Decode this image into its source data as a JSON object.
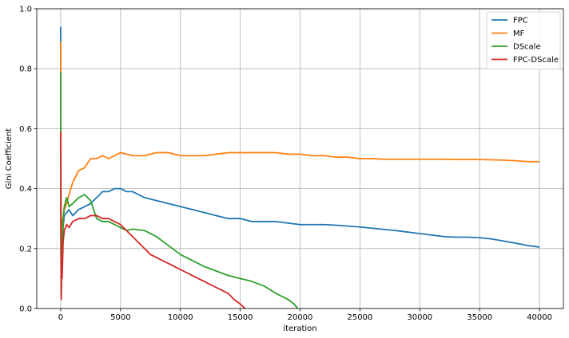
{
  "chart_data": {
    "type": "line",
    "xlabel": "iteration",
    "ylabel": "Gini Coefficient",
    "xlim": [
      -2000,
      42000
    ],
    "ylim": [
      0,
      1.0
    ],
    "xticks": [
      0,
      5000,
      10000,
      15000,
      20000,
      25000,
      30000,
      35000,
      40000
    ],
    "yticks": [
      0.0,
      0.2,
      0.4,
      0.6,
      0.8,
      1.0
    ],
    "grid": true,
    "legend": "top-right",
    "series": [
      {
        "name": "FPC",
        "color": "#1f77b4",
        "x": [
          0,
          20,
          50,
          80,
          120,
          200,
          300,
          500,
          700,
          1000,
          1500,
          2000,
          2500,
          3000,
          3500,
          4000,
          4500,
          5000,
          5500,
          6000,
          7000,
          8000,
          9000,
          10000,
          11000,
          12000,
          13000,
          14000,
          15000,
          16000,
          17000,
          18000,
          19000,
          20000,
          21000,
          22000,
          23000,
          24000,
          25000,
          26000,
          27000,
          28000,
          29000,
          30000,
          31000,
          32000,
          33000,
          34000,
          35000,
          36000,
          37000,
          38000,
          39000,
          40000
        ],
        "y": [
          0.94,
          0.3,
          0.15,
          0.25,
          0.2,
          0.27,
          0.31,
          0.32,
          0.33,
          0.31,
          0.33,
          0.34,
          0.35,
          0.37,
          0.39,
          0.39,
          0.4,
          0.4,
          0.39,
          0.39,
          0.37,
          0.36,
          0.35,
          0.34,
          0.33,
          0.32,
          0.31,
          0.3,
          0.3,
          0.29,
          0.29,
          0.29,
          0.285,
          0.28,
          0.28,
          0.28,
          0.278,
          0.275,
          0.272,
          0.268,
          0.264,
          0.26,
          0.255,
          0.25,
          0.245,
          0.24,
          0.238,
          0.238,
          0.236,
          0.232,
          0.225,
          0.218,
          0.21,
          0.205
        ]
      },
      {
        "name": "MF",
        "color": "#ff7f0e",
        "x": [
          0,
          20,
          50,
          80,
          120,
          200,
          300,
          500,
          700,
          1000,
          1500,
          2000,
          2500,
          3000,
          3500,
          4000,
          5000,
          6000,
          7000,
          8000,
          9000,
          10000,
          11000,
          12000,
          13000,
          14000,
          15000,
          16000,
          17000,
          18000,
          19000,
          20000,
          21000,
          22000,
          23000,
          24000,
          25000,
          26000,
          27000,
          28000,
          29000,
          30000,
          31000,
          32000,
          33000,
          34000,
          35000,
          36000,
          37000,
          38000,
          39000,
          40000
        ],
        "y": [
          0.89,
          0.35,
          0.2,
          0.3,
          0.24,
          0.3,
          0.33,
          0.35,
          0.38,
          0.42,
          0.46,
          0.47,
          0.5,
          0.5,
          0.51,
          0.5,
          0.52,
          0.51,
          0.51,
          0.52,
          0.52,
          0.51,
          0.51,
          0.51,
          0.515,
          0.52,
          0.52,
          0.52,
          0.52,
          0.52,
          0.515,
          0.515,
          0.51,
          0.51,
          0.505,
          0.505,
          0.5,
          0.5,
          0.498,
          0.498,
          0.498,
          0.498,
          0.498,
          0.498,
          0.497,
          0.497,
          0.497,
          0.496,
          0.495,
          0.493,
          0.49,
          0.49
        ]
      },
      {
        "name": "DScale",
        "color": "#2ca02c",
        "x": [
          0,
          20,
          50,
          80,
          120,
          200,
          300,
          500,
          700,
          1000,
          1500,
          2000,
          2500,
          3000,
          3500,
          4000,
          4500,
          5000,
          5500,
          6000,
          7000,
          8000,
          9000,
          10000,
          11000,
          12000,
          13000,
          14000,
          15000,
          16000,
          17000,
          18000,
          19000,
          19500,
          19800
        ],
        "y": [
          0.79,
          0.2,
          0.05,
          0.25,
          0.15,
          0.3,
          0.34,
          0.37,
          0.34,
          0.35,
          0.37,
          0.38,
          0.36,
          0.3,
          0.29,
          0.29,
          0.28,
          0.27,
          0.26,
          0.265,
          0.26,
          0.24,
          0.21,
          0.18,
          0.16,
          0.14,
          0.125,
          0.11,
          0.1,
          0.09,
          0.075,
          0.05,
          0.03,
          0.015,
          0.0
        ]
      },
      {
        "name": "FPC-DScale",
        "color": "#d62728",
        "x": [
          0,
          20,
          50,
          80,
          120,
          200,
          300,
          500,
          700,
          1000,
          1500,
          2000,
          2500,
          3000,
          3500,
          4000,
          4500,
          5000,
          5500,
          6000,
          6500,
          7000,
          7500,
          8000,
          8500,
          9000,
          9500,
          10000,
          11000,
          12000,
          13000,
          14000,
          14500,
          15000,
          15400
        ],
        "y": [
          0.59,
          0.2,
          0.03,
          0.15,
          0.1,
          0.22,
          0.26,
          0.28,
          0.27,
          0.29,
          0.3,
          0.3,
          0.31,
          0.31,
          0.3,
          0.3,
          0.29,
          0.28,
          0.26,
          0.24,
          0.22,
          0.2,
          0.18,
          0.17,
          0.16,
          0.15,
          0.14,
          0.13,
          0.11,
          0.09,
          0.07,
          0.05,
          0.03,
          0.015,
          0.0
        ]
      }
    ]
  }
}
